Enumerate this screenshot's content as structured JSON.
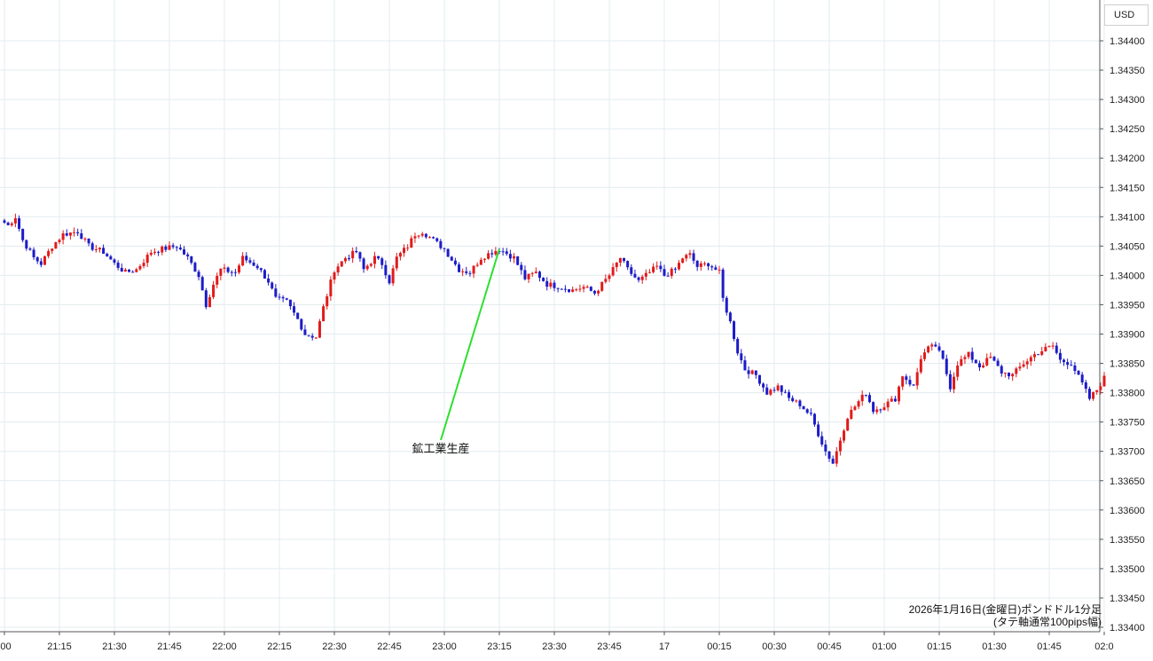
{
  "chart_data": {
    "type": "candlestick",
    "currency": "USD",
    "caption_line1": "2026年1月16日(金曜日)ポンドドル1分足",
    "caption_line2": "(タテ軸通常100pips幅)",
    "ylim": [
      1.334,
      1.3445
    ],
    "y_ticks": [
      "1.33400",
      "1.33450",
      "1.33500",
      "1.33550",
      "1.33600",
      "1.33650",
      "1.33700",
      "1.33750",
      "1.33800",
      "1.33850",
      "1.33900",
      "1.33950",
      "1.34000",
      "1.34050",
      "1.34100",
      "1.34150",
      "1.34200",
      "1.34250",
      "1.34300",
      "1.34350",
      "1.34400"
    ],
    "x_ticks": [
      ":00",
      "21:15",
      "21:30",
      "21:45",
      "22:00",
      "22:15",
      "22:30",
      "22:45",
      "23:00",
      "23:15",
      "23:30",
      "23:45",
      "17",
      "00:15",
      "00:30",
      "00:45",
      "01:00",
      "01:15",
      "01:30",
      "01:45",
      "02:0"
    ],
    "annotation": {
      "label": "鉱工業生産",
      "time": "23:15",
      "price": 1.34045
    },
    "up_color": "#e01b1b",
    "down_color": "#1c1cc8",
    "annotation_color": "#2de02d",
    "key_points": [
      [
        "21:00",
        1.3409
      ],
      [
        "21:01",
        1.34085
      ],
      [
        "21:03",
        1.341
      ],
      [
        "21:05",
        1.3406
      ],
      [
        "21:08",
        1.3403
      ],
      [
        "21:10",
        1.3402
      ],
      [
        "21:13",
        1.3405
      ],
      [
        "21:16",
        1.3407
      ],
      [
        "21:20",
        1.34075
      ],
      [
        "21:23",
        1.3405
      ],
      [
        "21:27",
        1.3404
      ],
      [
        "21:30",
        1.3402
      ],
      [
        "21:33",
        1.34005
      ],
      [
        "21:36",
        1.3401
      ],
      [
        "21:40",
        1.3404
      ],
      [
        "21:43",
        1.34045
      ],
      [
        "21:47",
        1.3405
      ],
      [
        "21:50",
        1.3403
      ],
      [
        "21:53",
        1.34
      ],
      [
        "21:55",
        1.3395
      ],
      [
        "21:57",
        1.33985
      ],
      [
        "21:59",
        1.3401
      ],
      [
        "22:03",
        1.34005
      ],
      [
        "22:05",
        1.3403
      ],
      [
        "22:09",
        1.34015
      ],
      [
        "22:12",
        1.3399
      ],
      [
        "22:14",
        1.3396
      ],
      [
        "22:17",
        1.33955
      ],
      [
        "22:20",
        1.33925
      ],
      [
        "22:22",
        1.339
      ],
      [
        "22:25",
        1.33895
      ],
      [
        "22:27",
        1.33945
      ],
      [
        "22:30",
        1.3401
      ],
      [
        "22:33",
        1.3403
      ],
      [
        "22:36",
        1.3404
      ],
      [
        "22:38",
        1.3401
      ],
      [
        "22:41",
        1.3403
      ],
      [
        "22:43",
        1.3402
      ],
      [
        "22:45",
        1.3399
      ],
      [
        "22:47",
        1.3403
      ],
      [
        "22:50",
        1.3405
      ],
      [
        "22:52",
        1.3407
      ],
      [
        "22:54",
        1.34075
      ],
      [
        "22:57",
        1.3406
      ],
      [
        "23:00",
        1.34045
      ],
      [
        "23:04",
        1.3401
      ],
      [
        "23:07",
        1.34005
      ],
      [
        "23:10",
        1.3403
      ],
      [
        "23:13",
        1.3404
      ],
      [
        "23:15",
        1.34045
      ],
      [
        "23:19",
        1.3403
      ],
      [
        "23:22",
        1.33995
      ],
      [
        "23:25",
        1.34005
      ],
      [
        "23:28",
        1.33985
      ],
      [
        "23:32",
        1.3398
      ],
      [
        "23:35",
        1.33975
      ],
      [
        "23:38",
        1.3398
      ],
      [
        "23:41",
        1.3397
      ],
      [
        "23:43",
        1.33985
      ],
      [
        "23:45",
        1.34
      ],
      [
        "23:48",
        1.3403
      ],
      [
        "23:50",
        1.3401
      ],
      [
        "23:53",
        1.3399
      ],
      [
        "23:55",
        1.34
      ],
      [
        "23:58",
        1.34015
      ],
      [
        "24:00",
        1.34
      ],
      [
        "24:03",
        1.3401
      ],
      [
        "24:05",
        1.3403
      ],
      [
        "24:07",
        1.34035
      ],
      [
        "24:09",
        1.34015
      ],
      [
        "24:12",
        1.3402
      ],
      [
        "24:15",
        1.34005
      ],
      [
        "24:16",
        1.3396
      ],
      [
        "24:18",
        1.3392
      ],
      [
        "24:20",
        1.3387
      ],
      [
        "24:22",
        1.3384
      ],
      [
        "24:25",
        1.3383
      ],
      [
        "24:28",
        1.338
      ],
      [
        "24:31",
        1.3381
      ],
      [
        "24:34",
        1.3379
      ],
      [
        "24:37",
        1.3378
      ],
      [
        "24:40",
        1.3376
      ],
      [
        "24:42",
        1.3373
      ],
      [
        "24:44",
        1.337
      ],
      [
        "24:46",
        1.3368
      ],
      [
        "24:48",
        1.3372
      ],
      [
        "24:50",
        1.3376
      ],
      [
        "24:53",
        1.33785
      ],
      [
        "24:55",
        1.338
      ],
      [
        "24:57",
        1.3377
      ],
      [
        "24:59",
        1.33775
      ],
      [
        "25:03",
        1.3379
      ],
      [
        "25:05",
        1.3383
      ],
      [
        "25:08",
        1.3381
      ],
      [
        "25:10",
        1.3386
      ],
      [
        "25:12",
        1.33875
      ],
      [
        "25:14",
        1.3388
      ],
      [
        "25:16",
        1.33855
      ],
      [
        "25:18",
        1.3381
      ],
      [
        "25:20",
        1.3385
      ],
      [
        "25:23",
        1.33865
      ],
      [
        "25:26",
        1.33845
      ],
      [
        "25:29",
        1.3386
      ],
      [
        "25:32",
        1.33835
      ],
      [
        "25:35",
        1.3383
      ],
      [
        "25:38",
        1.3385
      ],
      [
        "25:41",
        1.33865
      ],
      [
        "25:44",
        1.33875
      ],
      [
        "25:46",
        1.3388
      ],
      [
        "25:48",
        1.33855
      ],
      [
        "25:51",
        1.3385
      ],
      [
        "25:54",
        1.33815
      ],
      [
        "25:56",
        1.3379
      ],
      [
        "25:58",
        1.33805
      ],
      [
        "26:00",
        1.33825
      ]
    ]
  }
}
